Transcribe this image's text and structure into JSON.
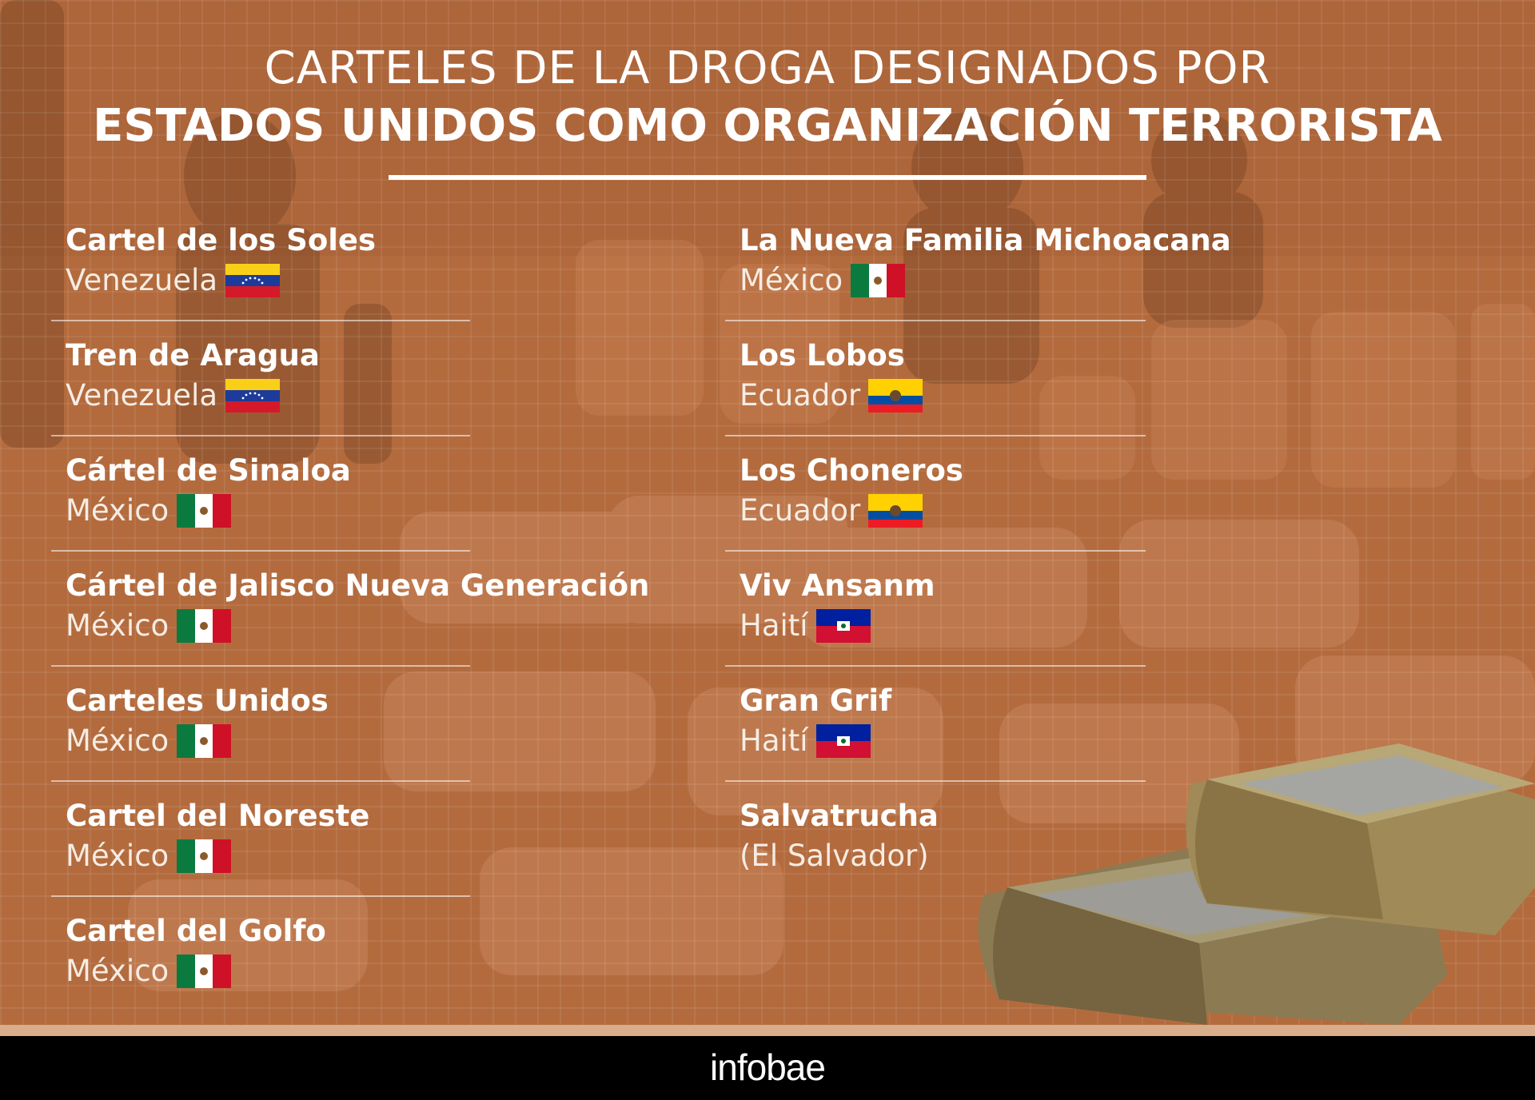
{
  "title": {
    "line1": "CARTELES DE LA DROGA DESIGNADOS POR",
    "line2": "ESTADOS UNIDOS COMO ORGANIZACIÓN TERRORISTA"
  },
  "left_column": [
    {
      "name": "Cartel de los Soles",
      "country": "Venezuela",
      "flag": "venezuela"
    },
    {
      "name": "Tren de Aragua",
      "country": "Venezuela",
      "flag": "venezuela"
    },
    {
      "name": "Cártel de Sinaloa",
      "country": "México",
      "flag": "mexico"
    },
    {
      "name": "Cártel de Jalisco Nueva Generación",
      "country": "México",
      "flag": "mexico"
    },
    {
      "name": "Carteles Unidos",
      "country": "México",
      "flag": "mexico"
    },
    {
      "name": "Cartel del Noreste",
      "country": "México",
      "flag": "mexico"
    },
    {
      "name": "Cartel del Golfo",
      "country": "México",
      "flag": "mexico"
    }
  ],
  "right_column": [
    {
      "name": "La Nueva Familia Michoacana",
      "country": "México",
      "flag": "mexico"
    },
    {
      "name": "Los Lobos",
      "country": "Ecuador",
      "flag": "ecuador"
    },
    {
      "name": "Los Choneros",
      "country": "Ecuador",
      "flag": "ecuador"
    },
    {
      "name": "Viv Ansanm",
      "country": "Haití",
      "flag": "haiti"
    },
    {
      "name": "Gran Grif",
      "country": "Haití",
      "flag": "haiti"
    },
    {
      "name": "Salvatrucha",
      "country": "(El Salvador)",
      "flag": ""
    }
  ],
  "footer": {
    "brand": "infobae"
  },
  "colors": {
    "background": "#b36b3e",
    "text": "#ffffff",
    "footer": "#000000",
    "footer_strip": "#d7ad8b"
  }
}
